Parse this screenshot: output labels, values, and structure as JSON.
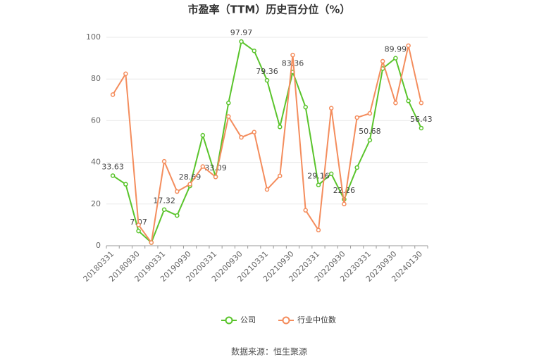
{
  "chart_data": {
    "type": "line",
    "title": "市盈率（TTM）历史百分位（%）",
    "categories": [
      "20180331",
      null,
      "20180930",
      null,
      "20190331",
      null,
      "20190930",
      null,
      "20200331",
      null,
      "20200930",
      null,
      "20210331",
      null,
      "20210930",
      null,
      "20220331",
      null,
      "20220930",
      null,
      "20230331",
      null,
      "20230930",
      null,
      "20240130"
    ],
    "series": [
      {
        "name": "公司",
        "color": "#5ac42c",
        "values": [
          33.63,
          29.5,
          7.07,
          1.5,
          17.32,
          14.5,
          28.69,
          53,
          33.09,
          68.5,
          97.97,
          93.5,
          79.36,
          57,
          83.36,
          66.5,
          29.16,
          34.5,
          22.26,
          37.5,
          50.68,
          85,
          89.99,
          69.5,
          56.43
        ]
      },
      {
        "name": "行业中位数",
        "color": "#f48d5d",
        "values": [
          72.5,
          82.5,
          10,
          1.5,
          40.5,
          26,
          29.5,
          38,
          33,
          62,
          52,
          54.5,
          27,
          33.5,
          91.5,
          17,
          7.5,
          66,
          20,
          61.5,
          63.5,
          88.5,
          68.5,
          96,
          68.5
        ]
      }
    ],
    "ylim": [
      0,
      100
    ],
    "yticks": [
      0,
      20,
      40,
      60,
      80,
      100
    ],
    "grid": true,
    "source": "数据来源：恒生聚源"
  }
}
